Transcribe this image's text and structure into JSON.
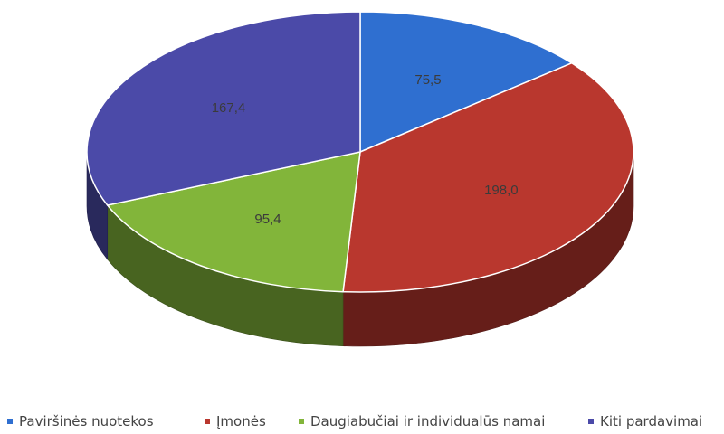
{
  "chart_data": {
    "type": "pie",
    "style": "3d",
    "title": "",
    "start": "top",
    "direction": "clockwise",
    "data_labels": true,
    "legend_position": "bottom",
    "series": [
      {
        "label": "Paviršinės nuotekos",
        "value": 75.5,
        "display": "75,5",
        "color": "#2f6fd0"
      },
      {
        "label": "Įmonės",
        "value": 198.0,
        "display": "198,0",
        "color": "#b9372e"
      },
      {
        "label": "Daugiabučiai ir individualūs namai",
        "value": 95.4,
        "display": "95,4",
        "color": "#82b53a"
      },
      {
        "label": "Kiti pardavimai",
        "value": 167.4,
        "display": "167,4",
        "color": "#4b4aa8"
      }
    ]
  }
}
